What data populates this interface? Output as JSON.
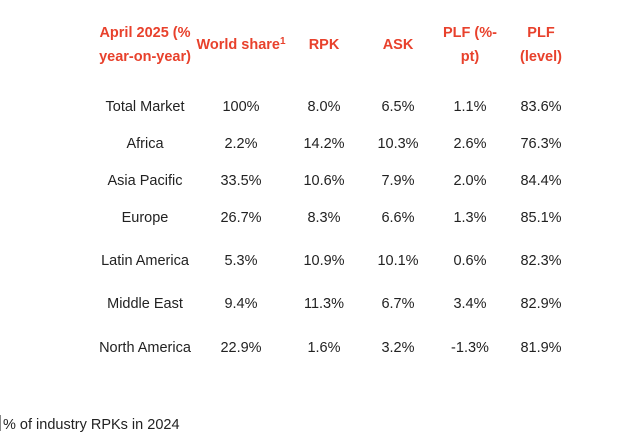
{
  "header": {
    "region": "April 2025 (% year-on-year)",
    "world_share": "World share",
    "world_share_note": "1",
    "rpk": "RPK",
    "ask": "ASK",
    "plf_pt": "PLF (%-pt)",
    "plf_level": "PLF (level)"
  },
  "header_color": "#e8412c",
  "rows": [
    {
      "region": "Total Market",
      "world_share": "100%",
      "rpk": "8.0%",
      "ask": "6.5%",
      "plf_pt": "1.1%",
      "plf_level": "83.6%"
    },
    {
      "region": "Africa",
      "world_share": "2.2%",
      "rpk": "14.2%",
      "ask": "10.3%",
      "plf_pt": "2.6%",
      "plf_level": "76.3%"
    },
    {
      "region": "Asia Pacific",
      "world_share": "33.5%",
      "rpk": "10.6%",
      "ask": "7.9%",
      "plf_pt": "2.0%",
      "plf_level": "84.4%"
    },
    {
      "region": "Europe",
      "world_share": "26.7%",
      "rpk": "8.3%",
      "ask": "6.6%",
      "plf_pt": "1.3%",
      "plf_level": "85.1%"
    },
    {
      "region": "Latin America",
      "world_share": "5.3%",
      "rpk": "10.9%",
      "ask": "10.1%",
      "plf_pt": "0.6%",
      "plf_level": "82.3%"
    },
    {
      "region": "Middle East",
      "world_share": "9.4%",
      "rpk": "11.3%",
      "ask": "6.7%",
      "plf_pt": "3.4%",
      "plf_level": "82.9%"
    },
    {
      "region": "North America",
      "world_share": "22.9%",
      "rpk": "1.6%",
      "ask": "3.2%",
      "plf_pt": "-1.3%",
      "plf_level": "81.9%"
    }
  ],
  "footnote": {
    "marker": "1",
    "text": "% of industry RPKs in 2024"
  }
}
